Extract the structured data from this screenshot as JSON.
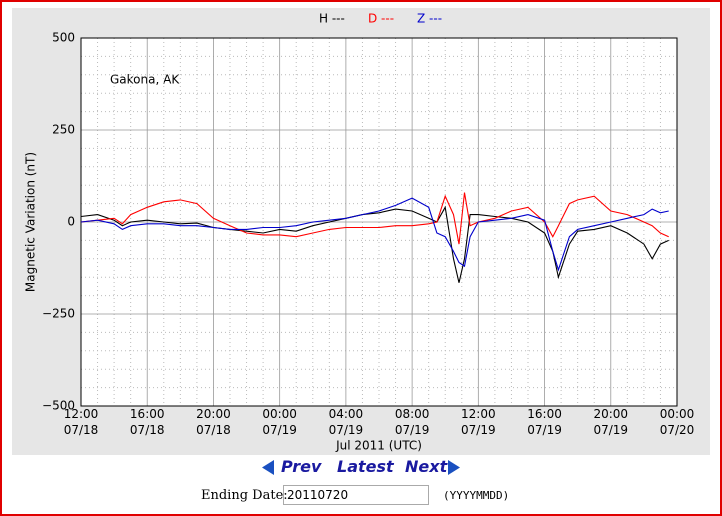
{
  "chart_data": {
    "type": "line",
    "annotation": "Gakona, AK",
    "ylabel": "Magnetic Variation (nT)",
    "xlabel": "Jul 2011 (UTC)",
    "x": [
      "12:00 07/18",
      "13:00 07/18",
      "14:00 07/18",
      "14:30 07/18",
      "15:00 07/18",
      "16:00 07/18",
      "17:00 07/18",
      "18:00 07/18",
      "19:00 07/18",
      "20:00 07/18",
      "21:00 07/18",
      "22:00 07/18",
      "23:00 07/18",
      "00:00 07/19",
      "01:00 07/19",
      "02:00 07/19",
      "03:00 07/19",
      "04:00 07/19",
      "05:00 07/19",
      "06:00 07/19",
      "07:00 07/19",
      "08:00 07/19",
      "09:00 07/19",
      "09:30 07/19",
      "10:00 07/19",
      "10:30 07/19",
      "10:50 07/19",
      "11:10 07/19",
      "11:30 07/19",
      "12:00 07/19",
      "13:00 07/19",
      "14:00 07/19",
      "15:00 07/19",
      "16:00 07/19",
      "16:30 07/19",
      "16:50 07/19",
      "17:30 07/19",
      "18:00 07/19",
      "19:00 07/19",
      "20:00 07/19",
      "21:00 07/19",
      "22:00 07/19",
      "22:30 07/19",
      "23:00 07/19",
      "23:30 07/19"
    ],
    "series": [
      {
        "name": "H ---",
        "color": "#000000",
        "values": [
          15,
          20,
          5,
          -10,
          0,
          5,
          0,
          -5,
          -3,
          -15,
          -20,
          -25,
          -30,
          -20,
          -25,
          -10,
          0,
          10,
          20,
          25,
          35,
          30,
          10,
          0,
          40,
          -100,
          -165,
          -100,
          20,
          20,
          15,
          10,
          0,
          -30,
          -80,
          -150,
          -60,
          -25,
          -20,
          -10,
          -30,
          -60,
          -100,
          -60,
          -50
        ]
      },
      {
        "name": "D ---",
        "color": "#ff0000",
        "values": [
          0,
          5,
          10,
          -5,
          20,
          40,
          55,
          60,
          50,
          10,
          -10,
          -30,
          -35,
          -35,
          -40,
          -30,
          -20,
          -15,
          -15,
          -15,
          -10,
          -10,
          -5,
          0,
          70,
          20,
          -60,
          80,
          -10,
          0,
          10,
          30,
          40,
          0,
          -40,
          -10,
          50,
          60,
          70,
          30,
          20,
          0,
          -10,
          -30,
          -40
        ]
      },
      {
        "name": "Z ---",
        "color": "#0000cc",
        "values": [
          0,
          5,
          -5,
          -20,
          -10,
          -5,
          -5,
          -10,
          -10,
          -15,
          -20,
          -20,
          -15,
          -15,
          -10,
          0,
          5,
          10,
          20,
          30,
          45,
          65,
          40,
          -30,
          -40,
          -80,
          -110,
          -120,
          -40,
          0,
          5,
          10,
          20,
          5,
          -80,
          -130,
          -40,
          -20,
          -10,
          0,
          10,
          20,
          35,
          25,
          30
        ]
      }
    ],
    "xlim": [
      "12:00 07/18",
      "00:00 07/20"
    ],
    "xticks": [
      "12:00 07/18",
      "16:00 07/18",
      "20:00 07/18",
      "00:00 07/19",
      "04:00 07/19",
      "08:00 07/19",
      "12:00 07/19",
      "16:00 07/19",
      "20:00 07/19",
      "00:00 07/20"
    ],
    "ylim": [
      -500,
      500
    ],
    "yticks": [
      {
        "value": -500,
        "label": "−500"
      },
      {
        "value": -250,
        "label": "−250"
      },
      0,
      250,
      500
    ],
    "grid": true,
    "minor_grid": true
  },
  "controls": {
    "prev": "Prev",
    "latest": "Latest",
    "next": "Next",
    "date_label": "Ending Date:",
    "date_value": "20110720",
    "date_format": "(YYYYMMDD)"
  }
}
